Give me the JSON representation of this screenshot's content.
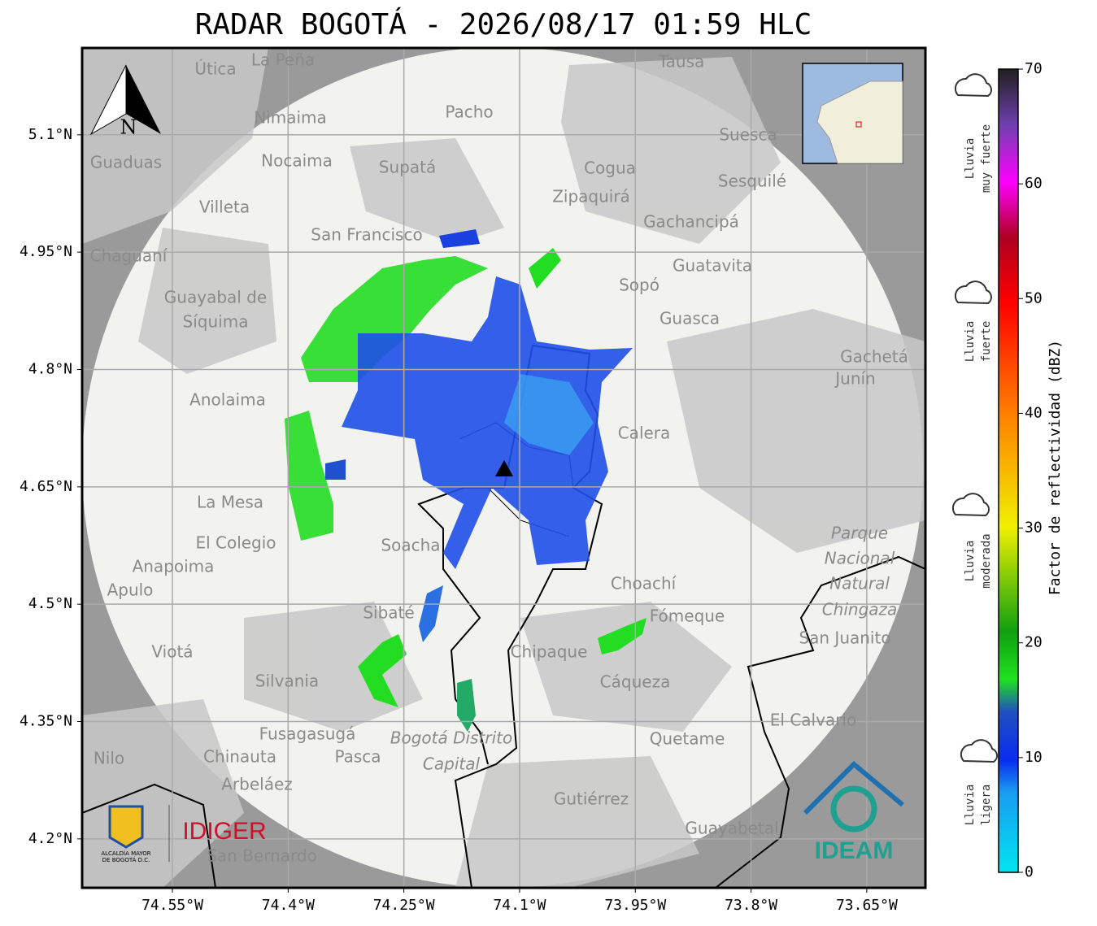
{
  "map": {
    "title": "RADAR BOGOTÁ - 2026/08/17 01:59 HLC",
    "xlim": [
      -74.667,
      -73.574
    ],
    "ylim": [
      4.1375,
      5.211
    ],
    "xticks": [
      {
        "value": -74.55,
        "label": "74.55°W"
      },
      {
        "value": -74.4,
        "label": "74.4°W"
      },
      {
        "value": -74.25,
        "label": "74.25°W"
      },
      {
        "value": -74.1,
        "label": "74.1°W"
      },
      {
        "value": -73.95,
        "label": "73.95°W"
      },
      {
        "value": -73.8,
        "label": "73.8°W"
      },
      {
        "value": -73.65,
        "label": "73.65°W"
      }
    ],
    "yticks": [
      {
        "value": 4.2,
        "label": "4.2°N"
      },
      {
        "value": 4.35,
        "label": "4.35°N"
      },
      {
        "value": 4.5,
        "label": "4.5°N"
      },
      {
        "value": 4.65,
        "label": "4.65°N"
      },
      {
        "value": 4.8,
        "label": "4.8°N"
      },
      {
        "value": 4.95,
        "label": "4.95°N"
      },
      {
        "value": 5.1,
        "label": "5.1°N"
      }
    ],
    "grid": true,
    "north": "N",
    "places": [
      "La Peña",
      "Útica",
      "Tausa",
      "Pacho",
      "Nimaima",
      "Guaduas",
      "Nocaima",
      "Supatá",
      "Suesca",
      "Cogua",
      "Sesquilé",
      "Zipaquirá",
      "Villeta",
      "Gachancipá",
      "San Francisco",
      "Chaguaní",
      "Guatavita",
      "Sopó",
      "Guayabal de",
      "Síquima",
      "Guasca",
      "Gachetá",
      "Junín",
      "Anolaima",
      "Calera",
      "La Mesa",
      "El Colegio",
      "Soacha",
      "Anapoima",
      "Apulo",
      "Choachí",
      "Sibaté",
      "Fómeque",
      "San Juanito",
      "Viotá",
      "Chipaque",
      "Silvania",
      "Cáqueza",
      "El Calvario",
      "Fusagasugá",
      "Quetame",
      "Nilo",
      "Chinauta",
      "Pasca",
      "Arbeláez",
      "Gutiérrez",
      "Guayabetal",
      "San Bernardo",
      "Parque",
      "Nacional",
      "Natural",
      "Chingaza",
      "Bogotá Distrito",
      "Capital"
    ]
  },
  "colorbar": {
    "label": "Factor de reflectividad (dBZ)",
    "lim": [
      0,
      70
    ],
    "ticks": [
      0,
      10,
      20,
      30,
      40,
      50,
      60,
      70
    ]
  },
  "legend": [
    [
      "Lluvia",
      "muy fuerte"
    ],
    [
      "Lluvia",
      "fuerte"
    ],
    [
      "Lluvia",
      "moderada"
    ],
    [
      "Lluvia",
      "ligera"
    ]
  ],
  "logos": {
    "idiger": "IDIGER",
    "alcaldia": [
      "ALCALDÍA MAYOR",
      "DE BOGOTÁ D.C."
    ],
    "ideam": "IDEAM"
  }
}
